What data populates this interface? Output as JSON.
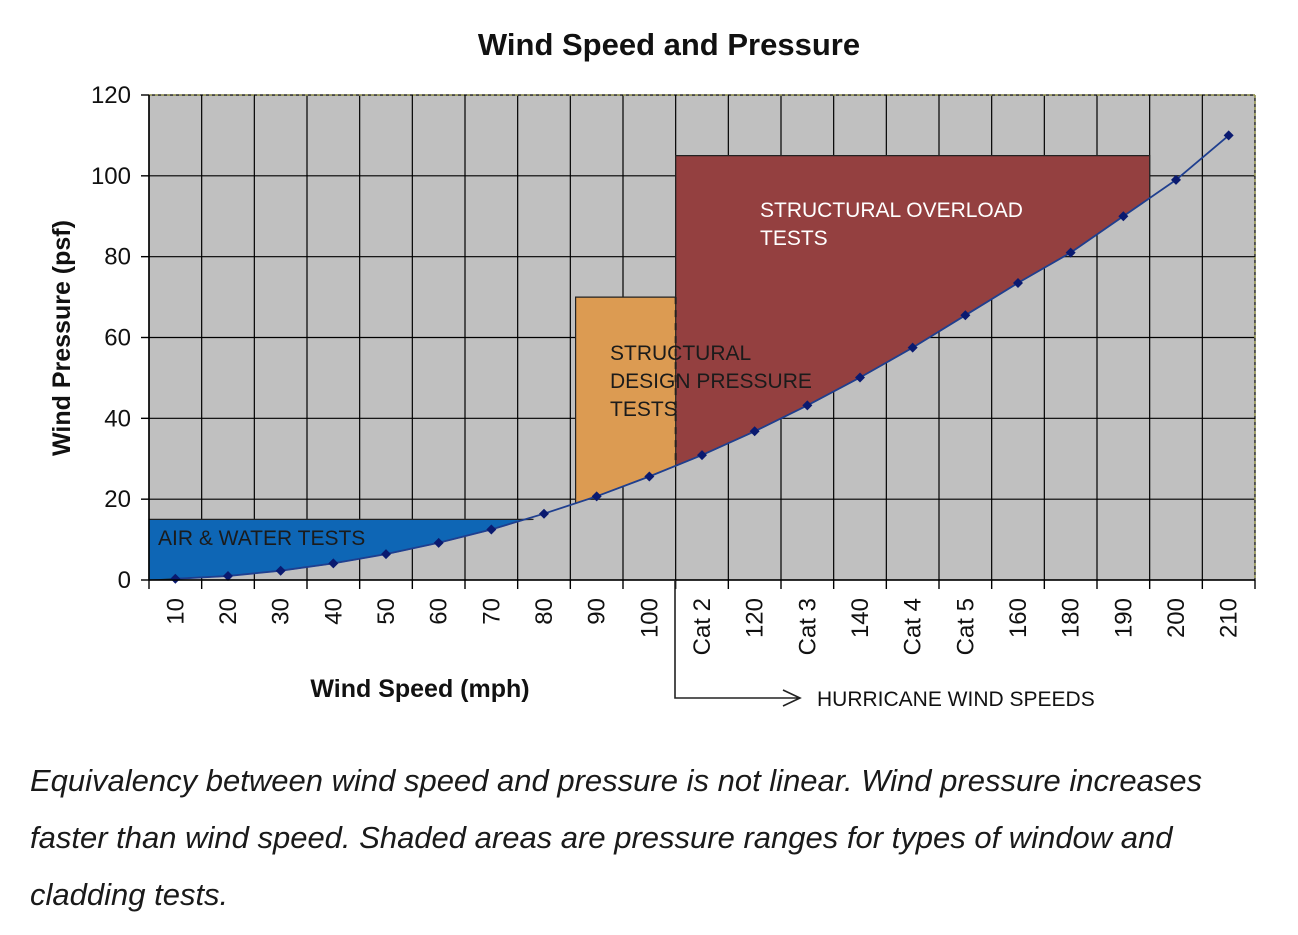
{
  "chart_data": {
    "type": "line",
    "title": "Wind Speed and Pressure",
    "xlabel": "Wind Speed (mph)",
    "ylabel": "Wind Pressure (psf)",
    "categories": [
      "10",
      "20",
      "30",
      "40",
      "50",
      "60",
      "70",
      "80",
      "90",
      "100",
      "Cat 2",
      "120",
      "Cat 3",
      "140",
      "Cat 4",
      "Cat 5",
      "160",
      "180",
      "190",
      "200",
      "210"
    ],
    "series": [
      {
        "values": [
          0.3,
          1.0,
          2.3,
          4.1,
          6.4,
          9.2,
          12.5,
          16.4,
          20.7,
          25.6,
          30.9,
          36.8,
          43.2,
          50.1,
          57.5,
          65.5,
          73.5,
          81.0,
          90.0,
          99.0,
          110.0
        ]
      }
    ],
    "ylim": [
      0,
      120
    ],
    "yticks": [
      0,
      20,
      40,
      60,
      80,
      100,
      120
    ],
    "grid": true,
    "colors": {
      "plot_bg": "#c0c0c0",
      "line": "#1f3f8f",
      "marker": "#0a1a70",
      "air_water": "#0e66b5",
      "design": "#dc9b52",
      "overload": "#944040"
    },
    "zones": [
      {
        "label": [
          "AIR & WATER TESTS"
        ],
        "color": "#0e66b5",
        "from_cat": 0,
        "to_cat": 7.3,
        "ymax": 15
      },
      {
        "label": [
          "STRUCTURAL",
          "DESIGN PRESSURE",
          "TESTS"
        ],
        "color": "#dc9b52",
        "from_cat": 8.1,
        "to_cat": 15.8,
        "ymax": 70
      },
      {
        "label": [
          "STRUCTURAL OVERLOAD",
          "TESTS"
        ],
        "color": "#944040",
        "from_cat": 10.0,
        "to_cat": 19.0,
        "ymax": 105
      }
    ],
    "annotations": [
      {
        "text": "HURRICANE WIND SPEEDS"
      }
    ]
  },
  "caption": "Equivalency between wind speed and pressure is not linear. Wind pressure increases faster than wind speed. Shaded areas are pressure ranges for types of window and cladding tests."
}
